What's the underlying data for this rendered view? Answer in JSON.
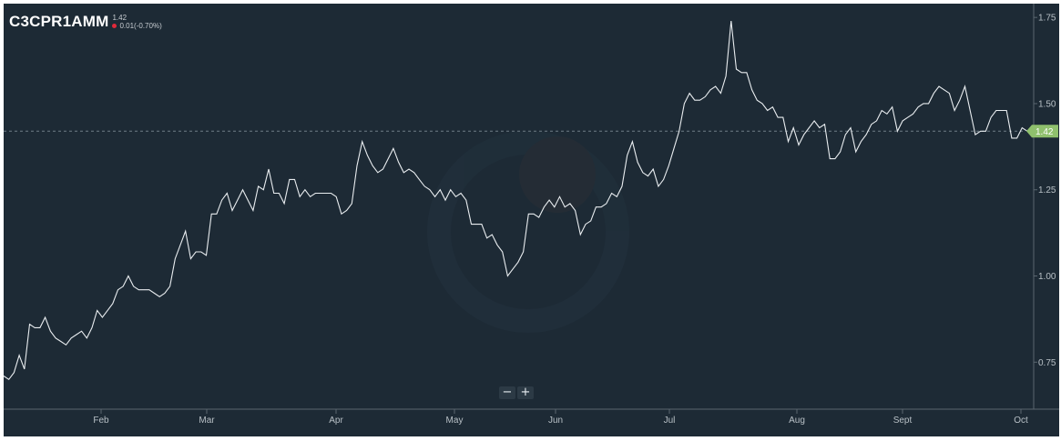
{
  "header": {
    "symbol": "C3CPR1AMM",
    "last": "1.42",
    "change": "0.01(-0.70%)"
  },
  "zoom": {
    "minus_label": "−",
    "plus_label": "+"
  },
  "price_marker": {
    "label": "1.42"
  },
  "colors": {
    "background": "#1d2a35",
    "line": "#e9edf0",
    "down": "#e0293a",
    "marker": "#8fc06d",
    "axis_text": "#b8c0c6",
    "reference_line": "#6f7c86"
  },
  "chart_data": {
    "type": "line",
    "title": "",
    "xlabel": "",
    "ylabel": "",
    "x_tick_labels": [
      "Feb",
      "Mar",
      "Apr",
      "May",
      "Jun",
      "Jul",
      "Aug",
      "Sept",
      "Oct"
    ],
    "y_ticks": [
      0.75,
      1.0,
      1.25,
      1.5,
      1.75
    ],
    "y_tick_labels": [
      "0.75",
      "1.00",
      "1.25",
      "1.50",
      "1.75"
    ],
    "ylim": [
      0.64,
      1.79
    ],
    "y_axis_side": "right",
    "grid": false,
    "last_value": 1.42,
    "reference_line_value": 1.42,
    "series": [
      {
        "values": [
          0.71,
          0.7,
          0.72,
          0.77,
          0.73,
          0.86,
          0.85,
          0.85,
          0.88,
          0.84,
          0.82,
          0.81,
          0.8,
          0.82,
          0.83,
          0.84,
          0.82,
          0.85,
          0.9,
          0.88,
          0.9,
          0.92,
          0.96,
          0.97,
          1.0,
          0.97,
          0.96,
          0.96,
          0.96,
          0.95,
          0.94,
          0.95,
          0.97,
          1.05,
          1.09,
          1.13,
          1.05,
          1.07,
          1.07,
          1.06,
          1.18,
          1.18,
          1.22,
          1.24,
          1.19,
          1.22,
          1.25,
          1.22,
          1.19,
          1.26,
          1.25,
          1.31,
          1.24,
          1.24,
          1.21,
          1.28,
          1.28,
          1.23,
          1.25,
          1.23,
          1.24,
          1.24,
          1.24,
          1.24,
          1.23,
          1.18,
          1.19,
          1.21,
          1.32,
          1.39,
          1.35,
          1.32,
          1.3,
          1.31,
          1.34,
          1.37,
          1.33,
          1.3,
          1.31,
          1.3,
          1.28,
          1.26,
          1.25,
          1.23,
          1.25,
          1.22,
          1.25,
          1.23,
          1.24,
          1.22,
          1.15,
          1.15,
          1.15,
          1.11,
          1.12,
          1.09,
          1.07,
          1.0,
          1.02,
          1.04,
          1.07,
          1.18,
          1.18,
          1.17,
          1.2,
          1.22,
          1.2,
          1.23,
          1.2,
          1.21,
          1.19,
          1.12,
          1.15,
          1.16,
          1.2,
          1.2,
          1.21,
          1.24,
          1.23,
          1.26,
          1.35,
          1.39,
          1.33,
          1.3,
          1.29,
          1.31,
          1.26,
          1.28,
          1.32,
          1.37,
          1.42,
          1.5,
          1.53,
          1.51,
          1.51,
          1.52,
          1.54,
          1.55,
          1.53,
          1.58,
          1.74,
          1.6,
          1.59,
          1.59,
          1.54,
          1.51,
          1.5,
          1.48,
          1.49,
          1.46,
          1.46,
          1.39,
          1.43,
          1.38,
          1.41,
          1.43,
          1.45,
          1.43,
          1.44,
          1.34,
          1.34,
          1.36,
          1.41,
          1.43,
          1.36,
          1.39,
          1.41,
          1.44,
          1.45,
          1.48,
          1.47,
          1.49,
          1.42,
          1.45,
          1.46,
          1.47,
          1.49,
          1.5,
          1.5,
          1.53,
          1.55,
          1.54,
          1.53,
          1.48,
          1.51,
          1.55,
          1.48,
          1.41,
          1.42,
          1.42,
          1.46,
          1.48,
          1.48,
          1.48,
          1.4,
          1.4,
          1.43,
          1.42
        ]
      }
    ]
  }
}
